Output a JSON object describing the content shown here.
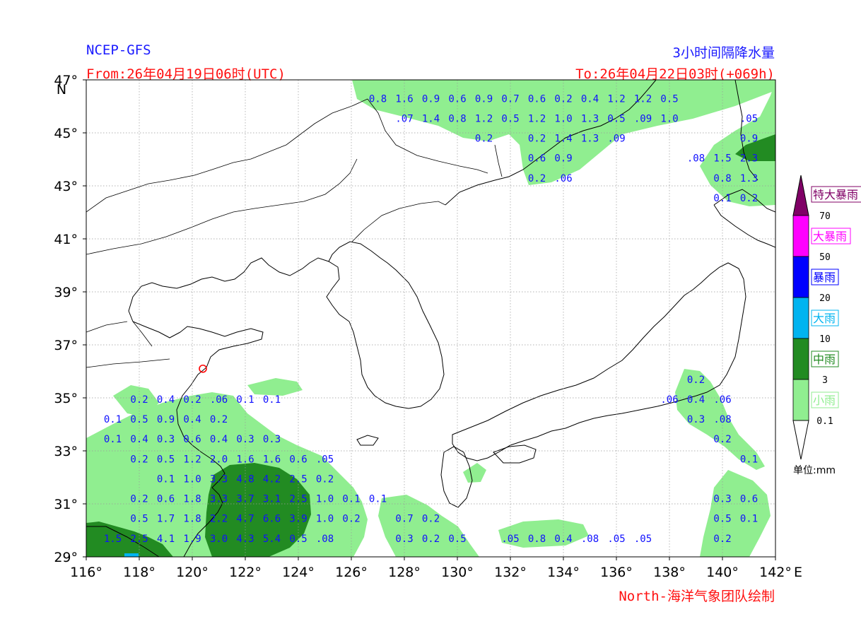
{
  "header": {
    "model": "NCEP-GFS",
    "product": "3小时间隔降水量",
    "from": "From:26年04月19日06时(UTC)",
    "to": "To:26年04月22日03时(+069h)",
    "credit": "North-海洋气象团队绘制"
  },
  "axes": {
    "lon_labels": [
      "116°",
      "118°",
      "120°",
      "122°",
      "124°",
      "126°",
      "128°",
      "130°",
      "132°",
      "134°",
      "136°",
      "138°",
      "140°",
      "142°"
    ],
    "lon_values": [
      116,
      118,
      120,
      122,
      124,
      126,
      128,
      130,
      132,
      134,
      136,
      138,
      140,
      142
    ],
    "lon_unit": "E",
    "lat_labels": [
      "47°",
      "45°",
      "43°",
      "41°",
      "39°",
      "37°",
      "35°",
      "33°",
      "31°",
      "29°"
    ],
    "lat_values": [
      47,
      45,
      43,
      41,
      39,
      37,
      35,
      33,
      31,
      29
    ],
    "lat_unit": "N",
    "lon_range": [
      116,
      142
    ],
    "lat_range": [
      29,
      47
    ],
    "grid": true
  },
  "legend": {
    "unit": "单位:mm",
    "categories": [
      {
        "name": "特大暴雨",
        "color": "#800066"
      },
      {
        "name": "大暴雨",
        "color": "#ff00ff"
      },
      {
        "name": "暴雨",
        "color": "#0000ff"
      },
      {
        "name": "大雨",
        "color": "#00b4f0"
      },
      {
        "name": "中雨",
        "color": "#228b22"
      },
      {
        "name": "小雨",
        "color": "#90ee90"
      }
    ],
    "thresholds": [
      "70",
      "50",
      "20",
      "10",
      "3",
      "0.1"
    ]
  },
  "station": {
    "lon": 120.4,
    "lat": 36.1,
    "color": "#ff0000"
  },
  "values": [
    {
      "t": "0.8",
      "lon": 127.0,
      "lat": 46.3
    },
    {
      "t": "1.6",
      "lon": 128.0,
      "lat": 46.3
    },
    {
      "t": "0.9",
      "lon": 129.0,
      "lat": 46.3
    },
    {
      "t": "0.6",
      "lon": 130.0,
      "lat": 46.3
    },
    {
      "t": "0.9",
      "lon": 131.0,
      "lat": 46.3
    },
    {
      "t": "0.7",
      "lon": 132.0,
      "lat": 46.3
    },
    {
      "t": "0.6",
      "lon": 133.0,
      "lat": 46.3
    },
    {
      "t": "0.2",
      "lon": 134.0,
      "lat": 46.3
    },
    {
      "t": "0.4",
      "lon": 135.0,
      "lat": 46.3
    },
    {
      "t": "1.2",
      "lon": 136.0,
      "lat": 46.3
    },
    {
      "t": "1.2",
      "lon": 137.0,
      "lat": 46.3
    },
    {
      "t": "0.5",
      "lon": 138.0,
      "lat": 46.3
    },
    {
      "t": ".07",
      "lon": 128.0,
      "lat": 45.55
    },
    {
      "t": "1.4",
      "lon": 129.0,
      "lat": 45.55
    },
    {
      "t": "0.8",
      "lon": 130.0,
      "lat": 45.55
    },
    {
      "t": "1.2",
      "lon": 131.0,
      "lat": 45.55
    },
    {
      "t": "0.5",
      "lon": 132.0,
      "lat": 45.55
    },
    {
      "t": "1.2",
      "lon": 133.0,
      "lat": 45.55
    },
    {
      "t": "1.0",
      "lon": 134.0,
      "lat": 45.55
    },
    {
      "t": "1.3",
      "lon": 135.0,
      "lat": 45.55
    },
    {
      "t": "0.5",
      "lon": 136.0,
      "lat": 45.55
    },
    {
      "t": ".09",
      "lon": 137.0,
      "lat": 45.55
    },
    {
      "t": "1.0",
      "lon": 138.0,
      "lat": 45.55
    },
    {
      "t": ".05",
      "lon": 141.0,
      "lat": 45.55
    },
    {
      "t": "0.2",
      "lon": 131.0,
      "lat": 44.8
    },
    {
      "t": "0.2",
      "lon": 133.0,
      "lat": 44.8
    },
    {
      "t": "1.4",
      "lon": 134.0,
      "lat": 44.8
    },
    {
      "t": "1.3",
      "lon": 135.0,
      "lat": 44.8
    },
    {
      "t": ".09",
      "lon": 136.0,
      "lat": 44.8
    },
    {
      "t": "0.9",
      "lon": 141.0,
      "lat": 44.8
    },
    {
      "t": "0.6",
      "lon": 133.0,
      "lat": 44.05
    },
    {
      "t": "0.9",
      "lon": 134.0,
      "lat": 44.05
    },
    {
      "t": ".08",
      "lon": 139.0,
      "lat": 44.05
    },
    {
      "t": "1.5",
      "lon": 140.0,
      "lat": 44.05
    },
    {
      "t": "2.3",
      "lon": 141.0,
      "lat": 44.05
    },
    {
      "t": "0.2",
      "lon": 133.0,
      "lat": 43.3
    },
    {
      "t": ".06",
      "lon": 134.0,
      "lat": 43.3
    },
    {
      "t": "0.8",
      "lon": 140.0,
      "lat": 43.3
    },
    {
      "t": "1.3",
      "lon": 141.0,
      "lat": 43.3
    },
    {
      "t": "0.1",
      "lon": 140.0,
      "lat": 42.55
    },
    {
      "t": "0.2",
      "lon": 141.0,
      "lat": 42.55
    },
    {
      "t": "0.2",
      "lon": 139.0,
      "lat": 35.7
    },
    {
      "t": "0.2",
      "lon": 118.0,
      "lat": 34.95
    },
    {
      "t": "0.4",
      "lon": 119.0,
      "lat": 34.95
    },
    {
      "t": "0.2",
      "lon": 120.0,
      "lat": 34.95
    },
    {
      "t": ".06",
      "lon": 121.0,
      "lat": 34.95
    },
    {
      "t": "0.1",
      "lon": 122.0,
      "lat": 34.95
    },
    {
      "t": "0.1",
      "lon": 123.0,
      "lat": 34.95
    },
    {
      "t": ".06",
      "lon": 138.0,
      "lat": 34.95
    },
    {
      "t": "0.4",
      "lon": 139.0,
      "lat": 34.95
    },
    {
      "t": ".06",
      "lon": 140.0,
      "lat": 34.95
    },
    {
      "t": "0.1",
      "lon": 117.0,
      "lat": 34.2
    },
    {
      "t": "0.5",
      "lon": 118.0,
      "lat": 34.2
    },
    {
      "t": "0.9",
      "lon": 119.0,
      "lat": 34.2
    },
    {
      "t": "0.4",
      "lon": 120.0,
      "lat": 34.2
    },
    {
      "t": "0.2",
      "lon": 121.0,
      "lat": 34.2
    },
    {
      "t": "0.3",
      "lon": 139.0,
      "lat": 34.2
    },
    {
      "t": ".08",
      "lon": 140.0,
      "lat": 34.2
    },
    {
      "t": "0.1",
      "lon": 117.0,
      "lat": 33.45
    },
    {
      "t": "0.4",
      "lon": 118.0,
      "lat": 33.45
    },
    {
      "t": "0.3",
      "lon": 119.0,
      "lat": 33.45
    },
    {
      "t": "0.6",
      "lon": 120.0,
      "lat": 33.45
    },
    {
      "t": "0.4",
      "lon": 121.0,
      "lat": 33.45
    },
    {
      "t": "0.3",
      "lon": 122.0,
      "lat": 33.45
    },
    {
      "t": "0.3",
      "lon": 123.0,
      "lat": 33.45
    },
    {
      "t": "0.2",
      "lon": 140.0,
      "lat": 33.45
    },
    {
      "t": "0.2",
      "lon": 118.0,
      "lat": 32.7
    },
    {
      "t": "0.5",
      "lon": 119.0,
      "lat": 32.7
    },
    {
      "t": "1.2",
      "lon": 120.0,
      "lat": 32.7
    },
    {
      "t": "2.0",
      "lon": 121.0,
      "lat": 32.7
    },
    {
      "t": "1.6",
      "lon": 122.0,
      "lat": 32.7
    },
    {
      "t": "1.6",
      "lon": 123.0,
      "lat": 32.7
    },
    {
      "t": "0.6",
      "lon": 124.0,
      "lat": 32.7
    },
    {
      "t": ".05",
      "lon": 125.0,
      "lat": 32.7
    },
    {
      "t": "0.1",
      "lon": 141.0,
      "lat": 32.7
    },
    {
      "t": "0.1",
      "lon": 119.0,
      "lat": 31.95
    },
    {
      "t": "1.0",
      "lon": 120.0,
      "lat": 31.95
    },
    {
      "t": "3.3",
      "lon": 121.0,
      "lat": 31.95
    },
    {
      "t": "4.8",
      "lon": 122.0,
      "lat": 31.95
    },
    {
      "t": "4.2",
      "lon": 123.0,
      "lat": 31.95
    },
    {
      "t": "2.5",
      "lon": 124.0,
      "lat": 31.95
    },
    {
      "t": "0.2",
      "lon": 125.0,
      "lat": 31.95
    },
    {
      "t": "0.2",
      "lon": 118.0,
      "lat": 31.2
    },
    {
      "t": "0.6",
      "lon": 119.0,
      "lat": 31.2
    },
    {
      "t": "1.8",
      "lon": 120.0,
      "lat": 31.2
    },
    {
      "t": "3.3",
      "lon": 121.0,
      "lat": 31.2
    },
    {
      "t": "3.7",
      "lon": 122.0,
      "lat": 31.2
    },
    {
      "t": "3.1",
      "lon": 123.0,
      "lat": 31.2
    },
    {
      "t": "2.5",
      "lon": 124.0,
      "lat": 31.2
    },
    {
      "t": "1.0",
      "lon": 125.0,
      "lat": 31.2
    },
    {
      "t": "0.1",
      "lon": 126.0,
      "lat": 31.2
    },
    {
      "t": "0.1",
      "lon": 127.0,
      "lat": 31.2
    },
    {
      "t": "0.3",
      "lon": 140.0,
      "lat": 31.2
    },
    {
      "t": "0.6",
      "lon": 141.0,
      "lat": 31.2
    },
    {
      "t": "0.5",
      "lon": 118.0,
      "lat": 30.45
    },
    {
      "t": "1.7",
      "lon": 119.0,
      "lat": 30.45
    },
    {
      "t": "1.8",
      "lon": 120.0,
      "lat": 30.45
    },
    {
      "t": "2.2",
      "lon": 121.0,
      "lat": 30.45
    },
    {
      "t": "4.7",
      "lon": 122.0,
      "lat": 30.45
    },
    {
      "t": "6.6",
      "lon": 123.0,
      "lat": 30.45
    },
    {
      "t": "3.9",
      "lon": 124.0,
      "lat": 30.45
    },
    {
      "t": "1.0",
      "lon": 125.0,
      "lat": 30.45
    },
    {
      "t": "0.2",
      "lon": 126.0,
      "lat": 30.45
    },
    {
      "t": "0.7",
      "lon": 128.0,
      "lat": 30.45
    },
    {
      "t": "0.2",
      "lon": 129.0,
      "lat": 30.45
    },
    {
      "t": "0.5",
      "lon": 140.0,
      "lat": 30.45
    },
    {
      "t": "0.1",
      "lon": 141.0,
      "lat": 30.45
    },
    {
      "t": "1.5",
      "lon": 117.0,
      "lat": 29.7
    },
    {
      "t": "2.5",
      "lon": 118.0,
      "lat": 29.7
    },
    {
      "t": "4.1",
      "lon": 119.0,
      "lat": 29.7
    },
    {
      "t": "1.9",
      "lon": 120.0,
      "lat": 29.7
    },
    {
      "t": "3.0",
      "lon": 121.0,
      "lat": 29.7
    },
    {
      "t": "4.3",
      "lon": 122.0,
      "lat": 29.7
    },
    {
      "t": "5.4",
      "lon": 123.0,
      "lat": 29.7
    },
    {
      "t": "0.5",
      "lon": 124.0,
      "lat": 29.7
    },
    {
      "t": ".08",
      "lon": 125.0,
      "lat": 29.7
    },
    {
      "t": "0.3",
      "lon": 128.0,
      "lat": 29.7
    },
    {
      "t": "0.2",
      "lon": 129.0,
      "lat": 29.7
    },
    {
      "t": "0.5",
      "lon": 130.0,
      "lat": 29.7
    },
    {
      "t": ".05",
      "lon": 132.0,
      "lat": 29.7
    },
    {
      "t": "0.8",
      "lon": 133.0,
      "lat": 29.7
    },
    {
      "t": "0.4",
      "lon": 134.0,
      "lat": 29.7
    },
    {
      "t": ".08",
      "lon": 135.0,
      "lat": 29.7
    },
    {
      "t": ".05",
      "lon": 136.0,
      "lat": 29.7
    },
    {
      "t": ".05",
      "lon": 137.0,
      "lat": 29.7
    },
    {
      "t": "0.2",
      "lon": 140.0,
      "lat": 29.7
    }
  ]
}
